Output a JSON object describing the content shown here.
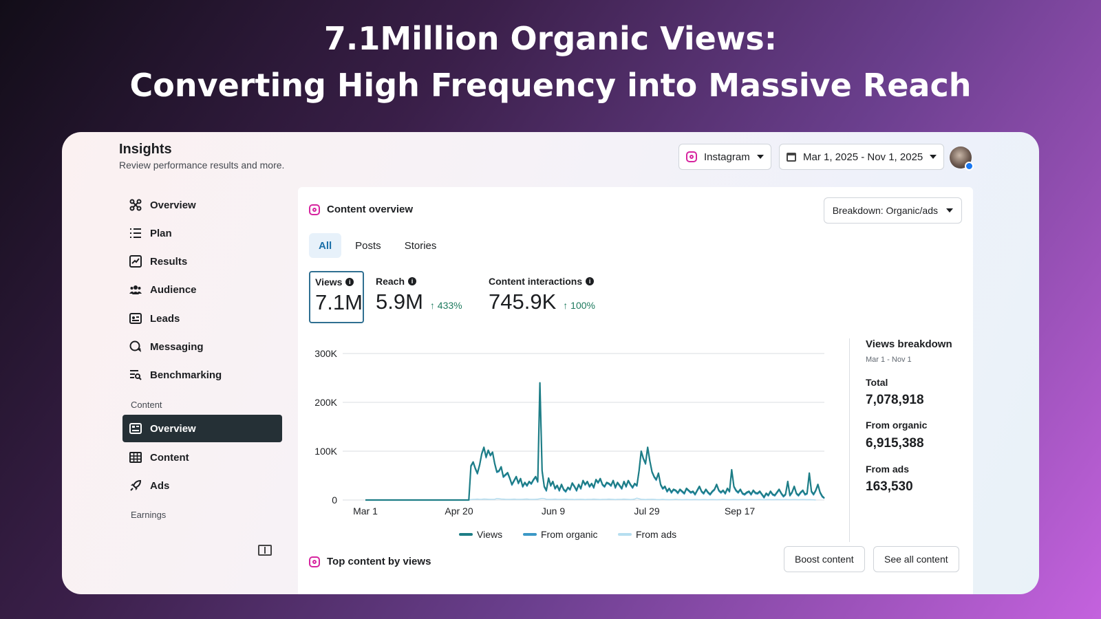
{
  "hero": {
    "line1": "7.1Million Organic Views:",
    "line2": "Converting High Frequency into Massive Reach"
  },
  "header": {
    "title": "Insights",
    "subtitle": "Review performance results and more.",
    "platform": "Instagram",
    "date_range": "Mar 1, 2025 - Nov 1, 2025"
  },
  "sidebar": {
    "items": [
      {
        "label": "Overview",
        "icon": "overview-icon"
      },
      {
        "label": "Plan",
        "icon": "list-icon"
      },
      {
        "label": "Results",
        "icon": "chart-icon"
      },
      {
        "label": "Audience",
        "icon": "people-icon"
      },
      {
        "label": "Leads",
        "icon": "id-card-icon"
      },
      {
        "label": "Messaging",
        "icon": "chat-icon"
      },
      {
        "label": "Benchmarking",
        "icon": "benchmark-icon"
      }
    ],
    "content_section": "Content",
    "content_items": [
      {
        "label": "Overview",
        "icon": "overview-card-icon"
      },
      {
        "label": "Content",
        "icon": "grid-icon"
      },
      {
        "label": "Ads",
        "icon": "rocket-icon"
      }
    ],
    "earnings_section": "Earnings"
  },
  "panel": {
    "title": "Content overview",
    "breakdown": "Breakdown: Organic/ads",
    "tabs": [
      "All",
      "Posts",
      "Stories"
    ],
    "active_tab": "All"
  },
  "metrics": {
    "views": {
      "label": "Views",
      "value": "7.1M"
    },
    "reach": {
      "label": "Reach",
      "value": "5.9M",
      "delta": "↑ 433%"
    },
    "interactions": {
      "label": "Content interactions",
      "value": "745.9K",
      "delta": "↑ 100%"
    }
  },
  "views_breakdown": {
    "title": "Views breakdown",
    "period": "Mar 1 - Nov 1",
    "total_label": "Total",
    "total": "7,078,918",
    "organic_label": "From organic",
    "organic": "6,915,388",
    "ads_label": "From ads",
    "ads": "163,530"
  },
  "top_content": {
    "title": "Top content by views",
    "boost": "Boost content",
    "see_all": "See all content"
  },
  "colors": {
    "views": "#1d7d86",
    "organic": "#3b98c6",
    "ads": "#b6def0",
    "active_nav": "#253036"
  },
  "chart_data": {
    "type": "line",
    "x_tick_labels": [
      "Mar 1",
      "Apr 20",
      "Jun 9",
      "Jul 29",
      "Sep 17"
    ],
    "y_tick_labels": [
      "0",
      "100K",
      "200K",
      "300K"
    ],
    "ylim": [
      0,
      300000
    ],
    "legend": [
      "Views",
      "From organic",
      "From ads"
    ],
    "legend_position": "bottom",
    "grid": true,
    "series": [
      {
        "name": "Views",
        "values": [
          0,
          0,
          0,
          0,
          0,
          0,
          0,
          0,
          0,
          0,
          0,
          0,
          0,
          0,
          0,
          0,
          0,
          0,
          0,
          0,
          0,
          0,
          0,
          0,
          0,
          0,
          0,
          0,
          0,
          0,
          0,
          0,
          0,
          0,
          0,
          0,
          0,
          0,
          0,
          0,
          0,
          0,
          0,
          0,
          0,
          0,
          0,
          0,
          0,
          70000,
          78000,
          65000,
          55000,
          72000,
          95000,
          108000,
          88000,
          102000,
          92000,
          98000,
          75000,
          58000,
          60000,
          68000,
          48000,
          52000,
          56000,
          45000,
          32000,
          40000,
          48000,
          35000,
          44000,
          28000,
          36000,
          30000,
          38000,
          34000,
          42000,
          48000,
          38000,
          240000,
          60000,
          28000,
          20000,
          45000,
          30000,
          38000,
          24000,
          30000,
          20000,
          32000,
          22000,
          18000,
          26000,
          22000,
          35000,
          28000,
          20000,
          32000,
          24000,
          40000,
          32000,
          38000,
          28000,
          34000,
          26000,
          42000,
          36000,
          44000,
          32000,
          28000,
          36000,
          34000,
          30000,
          40000,
          26000,
          36000,
          30000,
          24000,
          38000,
          28000,
          40000,
          32000,
          26000,
          34000,
          30000,
          60000,
          100000,
          85000,
          75000,
          108000,
          80000,
          58000,
          48000,
          42000,
          55000,
          32000,
          24000,
          28000,
          18000,
          24000,
          16000,
          22000,
          20000,
          15000,
          22000,
          18000,
          14000,
          24000,
          20000,
          16000,
          18000,
          12000,
          20000,
          28000,
          18000,
          14000,
          22000,
          16000,
          12000,
          18000,
          22000,
          32000,
          20000,
          16000,
          20000,
          14000,
          24000,
          18000,
          62000,
          28000,
          20000,
          16000,
          22000,
          14000,
          12000,
          16000,
          18000,
          12000,
          20000,
          15000,
          14000,
          18000,
          12000,
          6000,
          14000,
          10000,
          18000,
          12000,
          10000,
          16000,
          22000,
          14000,
          8000,
          12000,
          38000,
          10000,
          16000,
          28000,
          14000,
          10000,
          16000,
          20000,
          12000,
          14000,
          55000,
          18000,
          12000,
          20000,
          32000,
          16000,
          8000,
          4000
        ]
      },
      {
        "name": "From organic",
        "values": [
          0,
          0,
          0,
          0,
          0,
          0,
          0,
          0,
          0,
          0,
          0,
          0,
          0,
          0,
          0,
          0,
          0,
          0,
          0,
          0,
          0,
          0,
          0,
          0,
          0,
          0,
          0,
          0,
          0,
          0,
          0,
          0,
          0,
          0,
          0,
          0,
          0,
          0,
          0,
          0,
          0,
          0,
          0,
          0,
          0,
          0,
          0,
          0,
          0,
          68000,
          76000,
          63000,
          53000,
          70000,
          93000,
          106000,
          86000,
          100000,
          90000,
          96000,
          73000,
          56000,
          58000,
          66000,
          46000,
          50000,
          54000,
          43000,
          30000,
          38000,
          46000,
          33000,
          42000,
          26000,
          34000,
          28000,
          36000,
          32000,
          40000,
          46000,
          36000,
          237000,
          57000,
          26000,
          18000,
          43000,
          28000,
          36000,
          22000,
          28000,
          18000,
          30000,
          20000,
          16000,
          24000,
          20000,
          33000,
          26000,
          18000,
          30000,
          22000,
          38000,
          30000,
          36000,
          26000,
          32000,
          24000,
          40000,
          34000,
          42000,
          30000,
          26000,
          34000,
          32000,
          28000,
          38000,
          24000,
          34000,
          28000,
          22000,
          36000,
          26000,
          38000,
          30000,
          24000,
          32000,
          28000,
          58000,
          97000,
          83000,
          73000,
          105000,
          78000,
          56000,
          46000,
          40000,
          53000,
          30000,
          22000,
          26000,
          16000,
          22000,
          14000,
          20000,
          18000,
          13000,
          20000,
          16000,
          12000,
          22000,
          18000,
          14000,
          16000,
          10000,
          18000,
          26000,
          16000,
          12000,
          20000,
          14000,
          10000,
          16000,
          20000,
          30000,
          18000,
          14000,
          18000,
          12000,
          22000,
          16000,
          60000,
          26000,
          18000,
          14000,
          20000,
          12000,
          10000,
          14000,
          16000,
          10000,
          18000,
          13000,
          12000,
          16000,
          10000,
          4000,
          12000,
          8000,
          16000,
          10000,
          8000,
          14000,
          20000,
          12000,
          6000,
          10000,
          36000,
          8000,
          14000,
          26000,
          12000,
          8000,
          14000,
          18000,
          10000,
          12000,
          53000,
          16000,
          10000,
          18000,
          30000,
          14000,
          6000,
          3000
        ]
      },
      {
        "name": "From ads",
        "values": [
          0,
          0,
          0,
          0,
          0,
          0,
          0,
          0,
          0,
          0,
          0,
          0,
          0,
          0,
          0,
          0,
          0,
          0,
          0,
          0,
          0,
          0,
          0,
          0,
          0,
          0,
          0,
          0,
          0,
          0,
          0,
          0,
          0,
          0,
          0,
          0,
          0,
          0,
          0,
          0,
          0,
          0,
          0,
          0,
          0,
          0,
          0,
          0,
          0,
          1000,
          1200,
          1500,
          1800,
          1400,
          1600,
          2000,
          1800,
          1500,
          1200,
          1400,
          1600,
          3000,
          2500,
          2000,
          1800,
          1600,
          1400,
          1200,
          1500,
          1800,
          1600,
          1400,
          1200,
          1500,
          1800,
          2000,
          1600,
          1400,
          1200,
          1500,
          1800,
          2500,
          3200,
          2800,
          1600,
          1400,
          1200,
          1500,
          1800,
          1600,
          1400,
          1200,
          1500,
          1800,
          1600,
          1400,
          1200,
          1000,
          1200,
          1400,
          1600,
          1200,
          1000,
          1200,
          1400,
          1600,
          1800,
          1500,
          1200,
          1000,
          1200,
          1400,
          1600,
          1800,
          1500,
          1200,
          1000,
          1200,
          1400,
          1600,
          1800,
          1500,
          1200,
          1000,
          1200,
          2000,
          4000,
          2500,
          1500,
          1200,
          1000,
          1200,
          1400,
          1600,
          1200,
          1000,
          800,
          1000,
          1200,
          1000,
          800,
          600,
          800,
          1000,
          1200,
          1000,
          800,
          600,
          800,
          1000,
          800,
          600,
          800,
          1000,
          800,
          600,
          800,
          1000,
          800,
          600,
          800,
          1000,
          800,
          600,
          800,
          1000,
          1200,
          1000,
          800,
          600,
          800,
          1000,
          800,
          600,
          800,
          1000,
          800,
          600,
          800,
          1000,
          800,
          600,
          800,
          1000,
          800,
          600,
          800,
          1000,
          800,
          600,
          800,
          1000,
          800,
          600,
          800,
          1000,
          800,
          600,
          800,
          1000,
          800,
          600,
          800,
          1000,
          800,
          600,
          800,
          600,
          400,
          200
        ]
      }
    ]
  }
}
